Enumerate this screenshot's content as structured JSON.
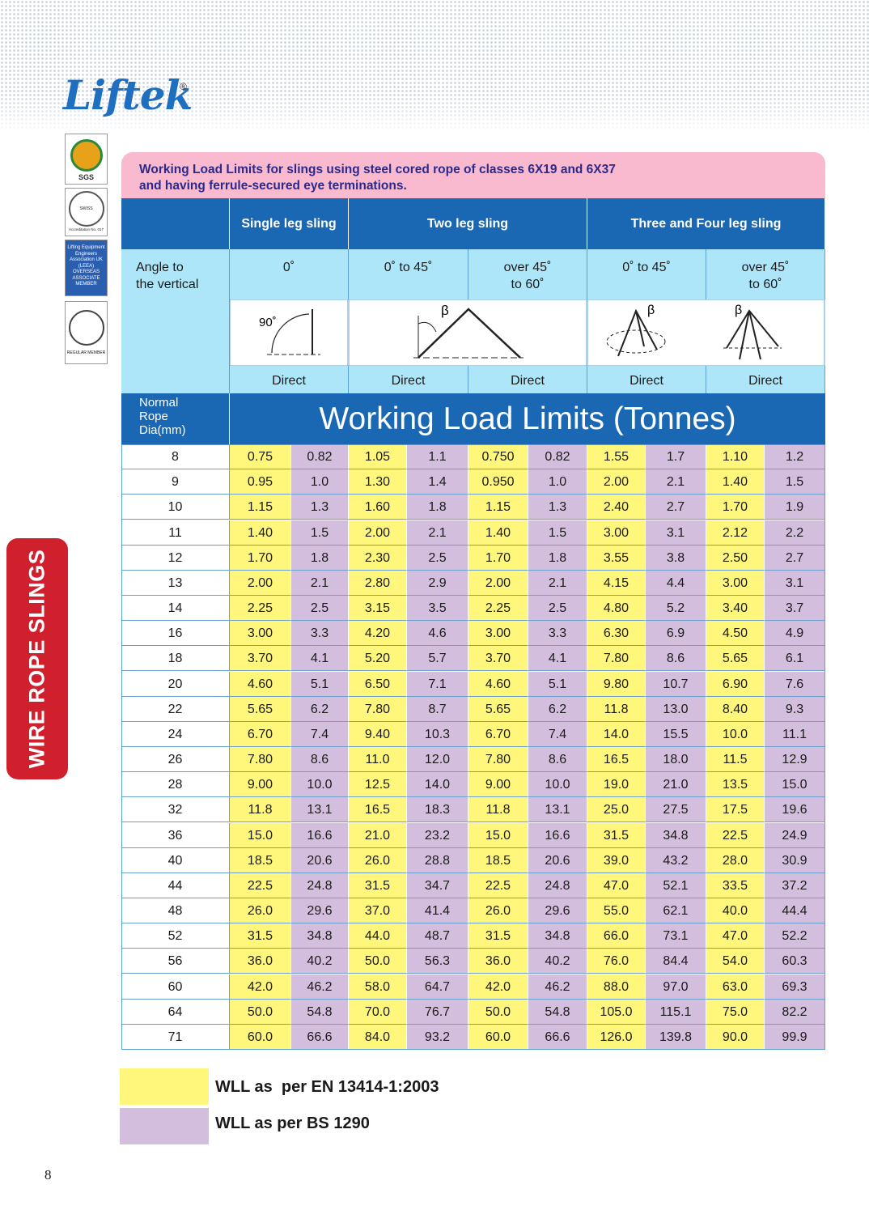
{
  "brand": {
    "name": "Liftek",
    "mark": "®"
  },
  "side_tab": "WIRE ROPE SLINGS",
  "badges": {
    "sgs": "SGS",
    "swiss": "SWISS CERTIFICATION",
    "accreditation": "Accreditation No. 017",
    "leea": [
      "Lifting Equipment",
      "Engineers",
      "Association UK",
      "(LEEA)",
      "OVERSEAS",
      "ASSOCIATE",
      "MEMBER"
    ],
    "regular": "REGULAR MEMBER"
  },
  "table": {
    "caption": [
      "Working Load Limits for slings using steel cored rope of classes  6X19 and 6X37",
      "and having ferrule-secured eye terminations."
    ],
    "groups": [
      "Single leg sling",
      "Two leg sling",
      "Three and Four leg sling"
    ],
    "angle_label": [
      "Angle to",
      "the vertical"
    ],
    "angles": [
      [
        "0˚"
      ],
      [
        "0˚ to 45˚"
      ],
      [
        "over 45˚",
        "to 60˚"
      ],
      [
        "0˚ to 45˚"
      ],
      [
        "over 45˚",
        "to 60˚"
      ]
    ],
    "diagram_labels": [
      "90˚",
      "β",
      "β",
      "β"
    ],
    "methods": [
      "Direct",
      "Direct",
      "Direct",
      "Direct",
      "Direct"
    ],
    "dia_label": [
      "Normal",
      "Rope",
      "Dia(mm)"
    ],
    "banner": "Working Load Limits (Tonnes)",
    "rows": [
      [
        "8",
        "0.75",
        "0.82",
        "1.05",
        "1.1",
        "0.750",
        "0.82",
        "1.55",
        "1.7",
        "1.10",
        "1.2"
      ],
      [
        "9",
        "0.95",
        "1.0",
        "1.30",
        "1.4",
        "0.950",
        "1.0",
        "2.00",
        "2.1",
        "1.40",
        "1.5"
      ],
      [
        "10",
        "1.15",
        "1.3",
        "1.60",
        "1.8",
        "1.15",
        "1.3",
        "2.40",
        "2.7",
        "1.70",
        "1.9"
      ],
      [
        "11",
        "1.40",
        "1.5",
        "2.00",
        "2.1",
        "1.40",
        "1.5",
        "3.00",
        "3.1",
        "2.12",
        "2.2"
      ],
      [
        "12",
        "1.70",
        "1.8",
        "2.30",
        "2.5",
        "1.70",
        "1.8",
        "3.55",
        "3.8",
        "2.50",
        "2.7"
      ],
      [
        "13",
        "2.00",
        "2.1",
        "2.80",
        "2.9",
        "2.00",
        "2.1",
        "4.15",
        "4.4",
        "3.00",
        "3.1"
      ],
      [
        "14",
        "2.25",
        "2.5",
        "3.15",
        "3.5",
        "2.25",
        "2.5",
        "4.80",
        "5.2",
        "3.40",
        "3.7"
      ],
      [
        "16",
        "3.00",
        "3.3",
        "4.20",
        "4.6",
        "3.00",
        "3.3",
        "6.30",
        "6.9",
        "4.50",
        "4.9"
      ],
      [
        "18",
        "3.70",
        "4.1",
        "5.20",
        "5.7",
        "3.70",
        "4.1",
        "7.80",
        "8.6",
        "5.65",
        "6.1"
      ],
      [
        "20",
        "4.60",
        "5.1",
        "6.50",
        "7.1",
        "4.60",
        "5.1",
        "9.80",
        "10.7",
        "6.90",
        "7.6"
      ],
      [
        "22",
        "5.65",
        "6.2",
        "7.80",
        "8.7",
        "5.65",
        "6.2",
        "11.8",
        "13.0",
        "8.40",
        "9.3"
      ],
      [
        "24",
        "6.70",
        "7.4",
        "9.40",
        "10.3",
        "6.70",
        "7.4",
        "14.0",
        "15.5",
        "10.0",
        "11.1"
      ],
      [
        "26",
        "7.80",
        "8.6",
        "11.0",
        "12.0",
        "7.80",
        "8.6",
        "16.5",
        "18.0",
        "11.5",
        "12.9"
      ],
      [
        "28",
        "9.00",
        "10.0",
        "12.5",
        "14.0",
        "9.00",
        "10.0",
        "19.0",
        "21.0",
        "13.5",
        "15.0"
      ],
      [
        "32",
        "11.8",
        "13.1",
        "16.5",
        "18.3",
        "11.8",
        "13.1",
        "25.0",
        "27.5",
        "17.5",
        "19.6"
      ],
      [
        "36",
        "15.0",
        "16.6",
        "21.0",
        "23.2",
        "15.0",
        "16.6",
        "31.5",
        "34.8",
        "22.5",
        "24.9"
      ],
      [
        "40",
        "18.5",
        "20.6",
        "26.0",
        "28.8",
        "18.5",
        "20.6",
        "39.0",
        "43.2",
        "28.0",
        "30.9"
      ],
      [
        "44",
        "22.5",
        "24.8",
        "31.5",
        "34.7",
        "22.5",
        "24.8",
        "47.0",
        "52.1",
        "33.5",
        "37.2"
      ],
      [
        "48",
        "26.0",
        "29.6",
        "37.0",
        "41.4",
        "26.0",
        "29.6",
        "55.0",
        "62.1",
        "40.0",
        "44.4"
      ],
      [
        "52",
        "31.5",
        "34.8",
        "44.0",
        "48.7",
        "31.5",
        "34.8",
        "66.0",
        "73.1",
        "47.0",
        "52.2"
      ],
      [
        "56",
        "36.0",
        "40.2",
        "50.0",
        "56.3",
        "36.0",
        "40.2",
        "76.0",
        "84.4",
        "54.0",
        "60.3"
      ],
      [
        "60",
        "42.0",
        "46.2",
        "58.0",
        "64.7",
        "42.0",
        "46.2",
        "88.0",
        "97.0",
        "63.0",
        "69.3"
      ],
      [
        "64",
        "50.0",
        "54.8",
        "70.0",
        "76.7",
        "50.0",
        "54.8",
        "105.0",
        "115.1",
        "75.0",
        "82.2"
      ],
      [
        "71",
        "60.0",
        "66.6",
        "84.0",
        "93.2",
        "60.0",
        "66.6",
        "126.0",
        "139.8",
        "90.0",
        "99.9"
      ]
    ]
  },
  "legend": [
    "WLL as  per EN 13414-1:2003",
    "WLL as per BS 1290"
  ],
  "page_number": "8"
}
